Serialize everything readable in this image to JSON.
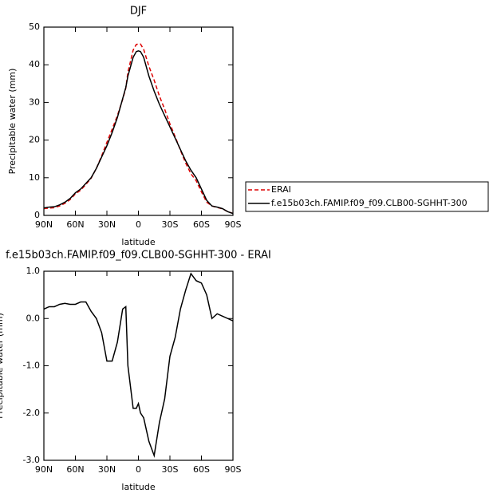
{
  "chart_data": [
    {
      "type": "line",
      "title": "DJF",
      "xlabel": "latitude",
      "ylabel": "Precipitable water (mm)",
      "x": [
        90,
        85,
        80,
        75,
        70,
        65,
        60,
        55,
        50,
        45,
        40,
        35,
        30,
        25,
        20,
        15,
        12,
        10,
        5,
        2,
        0,
        -2,
        -5,
        -10,
        -15,
        -20,
        -25,
        -30,
        -35,
        -40,
        -45,
        -50,
        -55,
        -60,
        -65,
        -70,
        -75,
        -80,
        -85,
        -90
      ],
      "series": [
        {
          "name": "ERAI",
          "color": "#dd0000",
          "dash": true,
          "values": [
            1.8,
            1.95,
            2.05,
            2.5,
            3.2,
            4.2,
            5.7,
            6.7,
            8.2,
            9.9,
            12.5,
            15.8,
            19.4,
            22.9,
            26.5,
            30.8,
            33.8,
            38,
            43.9,
            45.4,
            45.5,
            45.5,
            44.1,
            39.6,
            35.9,
            31.7,
            28.2,
            24.3,
            20.9,
            17.3,
            13.9,
            11.05,
            9.2,
            6.25,
            3.5,
            2.5,
            2.1,
            1.75,
            1.0,
            0.55
          ]
        },
        {
          "name": "f.e15b03ch.FAMIP.f09_f09.CLB00-SGHHT-300",
          "color": "#000000",
          "dash": false,
          "values": [
            2,
            2.2,
            2.3,
            2.8,
            3.5,
            4.5,
            6,
            7,
            8.5,
            10,
            12.5,
            15.5,
            18.5,
            22,
            26,
            31,
            34,
            37,
            42,
            43.5,
            43.7,
            43.5,
            42,
            37,
            33,
            29.5,
            26.5,
            23.5,
            20.5,
            17.5,
            14.5,
            12,
            10,
            7,
            4,
            2.5,
            2.2,
            1.8,
            1,
            0.5
          ]
        }
      ],
      "xlim": [
        90,
        -90
      ],
      "xticks": [
        {
          "value": 90,
          "label": "90N"
        },
        {
          "value": 60,
          "label": "60N"
        },
        {
          "value": 30,
          "label": "30N"
        },
        0,
        {
          "value": -30,
          "label": "30S"
        },
        {
          "value": -60,
          "label": "60S"
        },
        {
          "value": -90,
          "label": "90S"
        }
      ],
      "ylim": [
        0,
        50
      ],
      "yticks": [
        0,
        10,
        20,
        30,
        40,
        50
      ],
      "legend": "right"
    },
    {
      "type": "line",
      "title": "f.e15b03ch.FAMIP.f09_f09.CLB00-SGHHT-300 - ERAI",
      "xlabel": "latitude",
      "ylabel": "Precipitable water (mm)",
      "x": [
        90,
        85,
        80,
        75,
        70,
        65,
        60,
        55,
        50,
        45,
        40,
        35,
        30,
        25,
        20,
        15,
        12,
        10,
        5,
        2,
        0,
        -2,
        -5,
        -10,
        -15,
        -20,
        -25,
        -30,
        -35,
        -40,
        -45,
        -50,
        -55,
        -60,
        -65,
        -70,
        -75,
        -80,
        -85,
        -90
      ],
      "series": [
        {
          "color": "#000000",
          "dash": false,
          "values": [
            0.2,
            0.25,
            0.25,
            0.3,
            0.32,
            0.3,
            0.3,
            0.35,
            0.35,
            0.15,
            0.0,
            -0.3,
            -0.9,
            -0.9,
            -0.5,
            0.2,
            0.25,
            -1.0,
            -1.9,
            -1.9,
            -1.8,
            -2.0,
            -2.1,
            -2.6,
            -2.9,
            -2.2,
            -1.7,
            -0.8,
            -0.4,
            0.2,
            0.6,
            0.95,
            0.8,
            0.75,
            0.5,
            0.0,
            0.1,
            0.05,
            0.0,
            -0.05
          ]
        }
      ],
      "xlim": [
        90,
        -90
      ],
      "xticks": [
        {
          "value": 90,
          "label": "90N"
        },
        {
          "value": 60,
          "label": "60N"
        },
        {
          "value": 30,
          "label": "30N"
        },
        0,
        {
          "value": -30,
          "label": "30S"
        },
        {
          "value": -60,
          "label": "60S"
        },
        {
          "value": -90,
          "label": "90S"
        }
      ],
      "ylim": [
        -3,
        1
      ],
      "yticks": [
        {
          "value": -3,
          "label": "-3.0"
        },
        {
          "value": -2,
          "label": "-2.0"
        },
        {
          "value": -1,
          "label": "-1.0"
        },
        {
          "value": 0,
          "label": "0.0"
        },
        {
          "value": 1,
          "label": "1.0"
        }
      ]
    }
  ]
}
